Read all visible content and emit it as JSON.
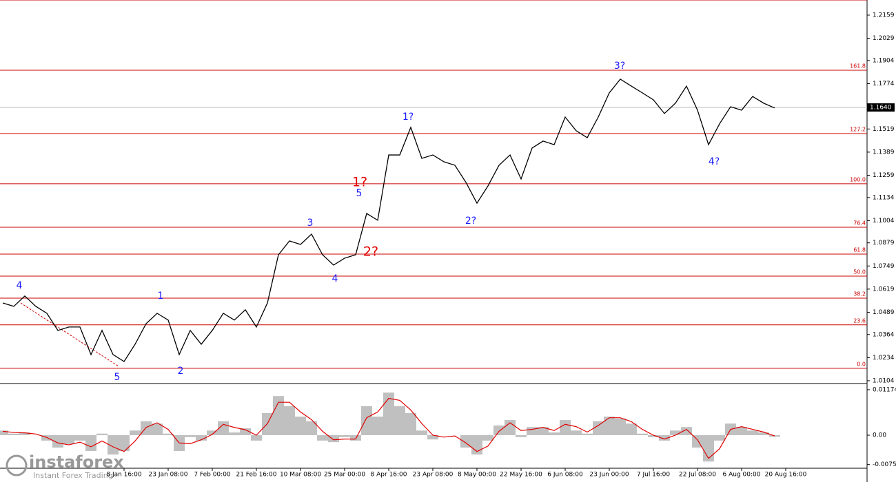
{
  "chart_data": [
    {
      "type": "line",
      "categories": [
        null,
        null,
        null,
        null,
        null,
        null,
        null,
        null,
        null,
        null,
        null,
        "8 Jan 16:00",
        null,
        null,
        null,
        "23 Jan 08:00",
        null,
        null,
        null,
        "7 Feb 00:00",
        null,
        null,
        null,
        "21 Feb 16:00",
        null,
        null,
        null,
        "10 Mar 08:00",
        null,
        null,
        null,
        "25 Mar 00:00",
        null,
        null,
        null,
        "8 Apr 16:00",
        null,
        null,
        null,
        "23 Apr 08:00",
        null,
        null,
        null,
        "8 May 00:00",
        null,
        null,
        null,
        "22 May 16:00",
        null,
        null,
        null,
        "6 Jun 08:00",
        null,
        null,
        null,
        "23 Jun 00:00",
        null,
        null,
        null,
        "7 Jul 16:00",
        null,
        null,
        null,
        "22 Jul 08:00",
        null,
        null,
        null,
        "6 Aug 00:00",
        null,
        null,
        null,
        "20 Aug 16:00"
      ],
      "series": [
        {
          "color": "#000000",
          "values": [
            1.0541,
            1.0522,
            1.058,
            1.0522,
            1.0483,
            1.0387,
            1.0406,
            1.0406,
            1.0251,
            1.0387,
            1.0251,
            1.0212,
            1.0309,
            1.0425,
            1.0483,
            1.0445,
            1.0251,
            1.0387,
            1.0309,
            1.0387,
            1.0483,
            1.0445,
            1.0503,
            1.0406,
            1.0541,
            1.0812,
            1.089,
            1.087,
            1.0928,
            1.0812,
            1.0754,
            1.0793,
            1.0812,
            1.1044,
            1.1006,
            1.1373,
            1.1373,
            1.1528,
            1.1354,
            1.1373,
            1.1335,
            1.1315,
            1.1219,
            1.1102,
            1.1199,
            1.1315,
            1.1373,
            1.1238,
            1.1412,
            1.1451,
            1.1431,
            1.1586,
            1.1509,
            1.147,
            1.1586,
            1.1722,
            1.1799,
            1.176,
            1.1722,
            1.1683,
            1.1606,
            1.1664,
            1.176,
            1.1625,
            1.1431,
            1.1548,
            1.1644,
            1.1625,
            1.1702,
            1.1664,
            1.1637,
            null
          ]
        }
      ],
      "ylim": [
        1.0096,
        1.2244
      ],
      "yticks": [
        1.2159,
        1.2029,
        1.1904,
        1.1774,
        1.1519,
        1.1389,
        1.1259,
        1.1134,
        1.1004,
        1.0879,
        1.0749,
        1.0619,
        1.0489,
        1.0364,
        1.0234,
        1.0104
      ],
      "fib_levels": [
        {
          "label": "0.0",
          "value": 1.0174
        },
        {
          "label": "23.6",
          "value": 1.0418
        },
        {
          "label": "38.2",
          "value": 1.0568
        },
        {
          "label": "50.0",
          "value": 1.0692
        },
        {
          "label": "61.8",
          "value": 1.0816
        },
        {
          "label": "76.4",
          "value": 1.0967
        },
        {
          "label": "100.0",
          "value": 1.1211
        },
        {
          "label": "127.2",
          "value": 1.1493
        },
        {
          "label": "161.8",
          "value": 1.1849
        }
      ],
      "fib_color": "#cc0000",
      "current_price": {
        "value": 1.164,
        "label": "1.1640"
      },
      "annotations": [
        {
          "text": "4",
          "color": "#1a1aff"
        },
        {
          "text": "5",
          "color": "#1a1aff"
        },
        {
          "text": "1",
          "color": "#1a1aff"
        },
        {
          "text": "2",
          "color": "#1a1aff"
        },
        {
          "text": "3",
          "color": "#1a1aff"
        },
        {
          "text": "4",
          "color": "#1a1aff"
        },
        {
          "text": "5",
          "color": "#1a1aff"
        },
        {
          "text": "1?",
          "color": "#e00000"
        },
        {
          "text": "2?",
          "color": "#e00000"
        },
        {
          "text": "1?",
          "color": "#1a1aff"
        },
        {
          "text": "2?",
          "color": "#1a1aff"
        },
        {
          "text": "3?",
          "color": "#1a1aff"
        },
        {
          "text": "4?",
          "color": "#1a1aff"
        }
      ]
    },
    {
      "type": "macd",
      "series": [
        {
          "color": "#c0c0c0",
          "values": [
            0.0012,
            0.0004,
            0.0007,
            0,
            -0.0014,
            -0.0032,
            -0.0023,
            -0.0014,
            -0.0041,
            0.0004,
            -0.005,
            -0.0041,
            0.0012,
            0.0036,
            0.003,
            0.0004,
            -0.0041,
            -0.0005,
            -0.0014,
            0.0012,
            0.0036,
            0.0007,
            0.0018,
            -0.0014,
            0.0057,
            0.0101,
            0.0075,
            0.0048,
            0.0036,
            -0.0014,
            -0.0018,
            -0.0005,
            -0.0014,
            0.0075,
            0.0048,
            0.011,
            0.0075,
            0.0057,
            0.0012,
            -0.0011,
            0,
            0,
            -0.0032,
            -0.005,
            -0.0014,
            0.0025,
            0.0039,
            -0.0005,
            0.0021,
            0.0021,
            0.0007,
            0.0039,
            0.0012,
            0.0004,
            0.0036,
            0.0048,
            0.0043,
            0.003,
            0.0004,
            -0.0005,
            -0.0014,
            0.0012,
            0.0021,
            -0.0032,
            -0.0068,
            -0.0014,
            0.003,
            0.0021,
            0.0012,
            0.0007,
            -0.0004,
            null
          ]
        },
        {
          "color": "#e00000",
          "values": [
            0.001,
            0.0007,
            0.0006,
            0.0003,
            -0.0006,
            -0.002,
            -0.0025,
            -0.0018,
            -0.003,
            -0.0015,
            -0.003,
            -0.0042,
            -0.0015,
            0.002,
            0.0032,
            0.0015,
            -0.002,
            -0.0022,
            -0.0012,
            0.0002,
            0.0028,
            0.002,
            0.0014,
            0,
            0.003,
            0.0085,
            0.0085,
            0.006,
            0.004,
            0.001,
            -0.0012,
            -0.001,
            -0.001,
            0.0045,
            0.006,
            0.0095,
            0.009,
            0.0065,
            0.003,
            0,
            -0.0005,
            -0.0002,
            -0.002,
            -0.0042,
            -0.0028,
            0.001,
            0.0032,
            0.0012,
            0.0015,
            0.002,
            0.0012,
            0.0028,
            0.0022,
            0.0008,
            0.0025,
            0.0045,
            0.0045,
            0.0035,
            0.0015,
            0,
            -0.001,
            0,
            0.0015,
            -0.0012,
            -0.006,
            -0.0035,
            0.0015,
            0.0022,
            0.0015,
            0.0008,
            -0.0002,
            null
          ]
        }
      ],
      "ylim": [
        -0.0112,
        0.0128
      ],
      "yticks": [
        0.01174,
        {
          "value": 0,
          "label": "0.00"
        },
        -0.00759
      ]
    }
  ],
  "watermark": {
    "brand": "instaforex",
    "tagline": "Instant Forex Trading"
  }
}
